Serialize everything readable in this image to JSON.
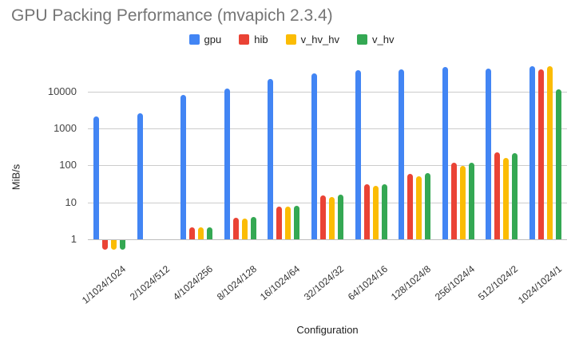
{
  "chart_data": {
    "type": "bar",
    "title": "GPU Packing Performance (mvapich 2.3.4)",
    "title_color": "#757575",
    "xlabel": "Configuration",
    "ylabel": "MiB/s",
    "yscale": "log",
    "ylim": [
      0.5,
      63000
    ],
    "grid": true,
    "legend_position": "top",
    "yticks": [
      {
        "label": "1",
        "value": 1
      },
      {
        "label": "10",
        "value": 10
      },
      {
        "label": "100",
        "value": 100
      },
      {
        "label": "1000",
        "value": 1000
      },
      {
        "label": "10000",
        "value": 10000
      }
    ],
    "categories": [
      "1/1024/1024",
      "2/1024/512",
      "4/1024/256",
      "8/1024/128",
      "16/1024/64",
      "32/1024/32",
      "64/1024/16",
      "128/1024/8",
      "256/1024/4",
      "512/1024/2",
      "1024/1024/1"
    ],
    "series": [
      {
        "name": "gpu",
        "color": "#4285F4",
        "values": [
          2100,
          2600,
          8000,
          12000,
          22000,
          31000,
          38500,
          40500,
          46000,
          42000,
          48500
        ]
      },
      {
        "name": "hib",
        "color": "#EA4335",
        "values": [
          0.55,
          null,
          2.1,
          3.8,
          7.7,
          15.5,
          31,
          60,
          120,
          230,
          39000
        ]
      },
      {
        "name": "v_hv_hv",
        "color": "#FBBC04",
        "values": [
          0.55,
          null,
          2.1,
          3.7,
          7.6,
          14,
          28,
          51,
          95,
          163,
          48500
        ]
      },
      {
        "name": "v_hv",
        "color": "#34A853",
        "values": [
          0.55,
          null,
          2.1,
          4.1,
          8.2,
          16,
          31,
          61,
          120,
          215,
          11700
        ]
      }
    ]
  }
}
